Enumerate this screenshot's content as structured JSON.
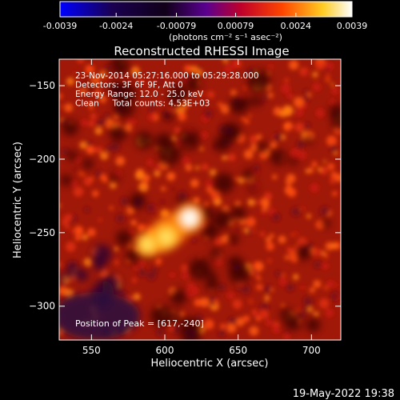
{
  "colorbar": {
    "tick_labels": [
      "-0.0039",
      "-0.0024",
      "-0.00079",
      "0.00079",
      "0.0024",
      "0.0039"
    ],
    "tick_values": [
      -0.0039,
      -0.0024,
      -0.00079,
      0.00079,
      0.0024,
      0.0039
    ],
    "range": [
      -0.0039,
      0.0039
    ],
    "unit_label": "(photons cm⁻² s⁻¹ asec⁻²)",
    "colors": [
      "#0000ff",
      "#000000",
      "#6600cc",
      "#cc0000",
      "#ff6600",
      "#ffff66",
      "#ffffff"
    ]
  },
  "chart_data": {
    "type": "heatmap",
    "title": "Reconstructed RHESSI Image",
    "xlabel": "Heliocentric X (arcsec)",
    "ylabel": "Heliocentric Y (arcsec)",
    "xlim": [
      528,
      720
    ],
    "ylim": [
      -323,
      -132
    ],
    "xticks": [
      550,
      600,
      650,
      700
    ],
    "yticks": [
      -150,
      -200,
      -250,
      -300
    ],
    "xtick_labels": [
      "550",
      "600",
      "650",
      "700"
    ],
    "ytick_labels": [
      "−150",
      "−200",
      "−250",
      "−300"
    ],
    "annotations": [
      "23-Nov-2014 05:27:16.000 to 05:29:28.000",
      "Detectors: 3F 6F 9F, Att 0",
      "Energy Range: 12.0 - 25.0 keV",
      "Clean     Total counts: 4.53E+03"
    ],
    "peak_label": "Position of Peak = [617,-240]",
    "peak": [
      617,
      -240
    ],
    "sources": [
      {
        "x": 617,
        "y": -240,
        "value": 0.0039
      },
      {
        "x": 601,
        "y": -253,
        "value": 0.0031
      },
      {
        "x": 588,
        "y": -258,
        "value": 0.0024
      }
    ]
  },
  "footer": {
    "date": "19-May-2022 19:38"
  }
}
